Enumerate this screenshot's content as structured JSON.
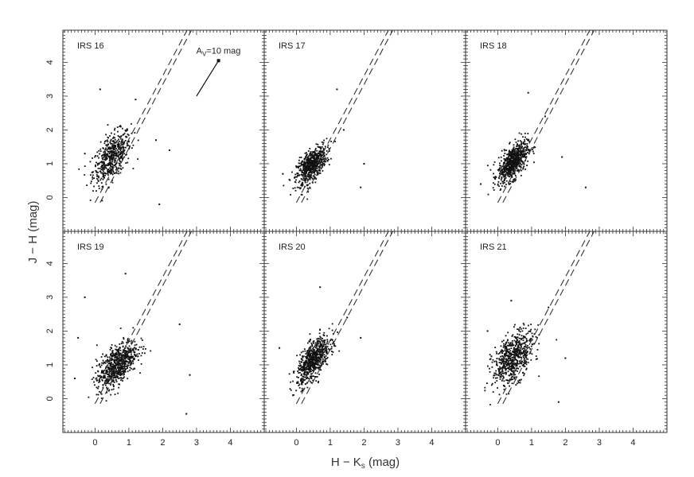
{
  "figure": {
    "xlabel": "H − K",
    "xlabel_sub": "s",
    "xlabel_unit": " (mag)",
    "ylabel": "J − H (mag)"
  },
  "colors": {
    "points": "#111111",
    "frame": "#333333"
  },
  "chart_data": {
    "type": "scatter",
    "layout": "2x3 grid of panels sharing axes",
    "xlim": [
      -0.95,
      5.0
    ],
    "ylim": [
      -1.0,
      4.95
    ],
    "xticks": [
      0,
      1,
      2,
      3,
      4
    ],
    "yticks": [
      0,
      1,
      2,
      3,
      4
    ],
    "x_tick_labels": [
      "0",
      "1",
      "2",
      "3",
      "4"
    ],
    "y_tick_labels": [
      "0",
      "1",
      "2",
      "3",
      "4"
    ],
    "reddening_band": {
      "lines": [
        {
          "x": [
            0.0,
            2.72
          ],
          "y": [
            -0.15,
            4.95
          ]
        },
        {
          "x": [
            0.15,
            2.85
          ],
          "y": [
            -0.15,
            4.95
          ]
        }
      ],
      "style": "dashed"
    },
    "reddening_vector": {
      "x": [
        3.0,
        3.65
      ],
      "y": [
        3.0,
        4.05
      ],
      "label_prefix": "A",
      "label_sub": "V",
      "label_suffix": "=10 mag",
      "panel": 0
    },
    "panels": [
      {
        "label": "IRS 16",
        "center": [
          0.5,
          1.2
        ],
        "spread": [
          0.28,
          0.38
        ],
        "corr": 0.55,
        "n": 520,
        "outliers": [
          [
            1.8,
            1.7
          ],
          [
            1.9,
            -0.2
          ],
          [
            0.15,
            3.2
          ],
          [
            -0.3,
            1.3
          ],
          [
            1.2,
            2.9
          ],
          [
            2.2,
            1.4
          ]
        ]
      },
      {
        "label": "IRS 17",
        "center": [
          0.45,
          0.95
        ],
        "spread": [
          0.22,
          0.28
        ],
        "corr": 0.6,
        "n": 620,
        "outliers": [
          [
            2.0,
            1.0
          ],
          [
            1.9,
            0.3
          ],
          [
            -0.4,
            0.7
          ],
          [
            1.2,
            3.2
          ],
          [
            1.4,
            2.0
          ]
        ]
      },
      {
        "label": "IRS 18",
        "center": [
          0.45,
          1.05
        ],
        "spread": [
          0.22,
          0.3
        ],
        "corr": 0.6,
        "n": 680,
        "outliers": [
          [
            2.6,
            0.3
          ],
          [
            -0.5,
            0.4
          ],
          [
            1.4,
            2.4
          ],
          [
            0.9,
            3.1
          ],
          [
            1.9,
            1.2
          ]
        ]
      },
      {
        "label": "IRS 19",
        "center": [
          0.65,
          1.0
        ],
        "spread": [
          0.3,
          0.35
        ],
        "corr": 0.6,
        "n": 700,
        "outliers": [
          [
            -0.6,
            0.6
          ],
          [
            -0.3,
            3.0
          ],
          [
            2.7,
            -0.45
          ],
          [
            2.8,
            0.7
          ],
          [
            0.9,
            3.7
          ],
          [
            2.5,
            2.2
          ],
          [
            -0.5,
            1.8
          ]
        ]
      },
      {
        "label": "IRS 20",
        "center": [
          0.5,
          1.15
        ],
        "spread": [
          0.24,
          0.34
        ],
        "corr": 0.65,
        "n": 660,
        "outliers": [
          [
            -0.1,
            0.1
          ],
          [
            0.7,
            3.3
          ],
          [
            1.9,
            1.8
          ],
          [
            -0.5,
            1.5
          ],
          [
            1.5,
            2.4
          ]
        ]
      },
      {
        "label": "IRS 21",
        "center": [
          0.45,
          1.2
        ],
        "spread": [
          0.3,
          0.4
        ],
        "corr": 0.5,
        "n": 620,
        "outliers": [
          [
            1.8,
            -0.1
          ],
          [
            -0.3,
            2.0
          ],
          [
            1.5,
            2.7
          ],
          [
            0.4,
            2.9
          ],
          [
            2.0,
            1.2
          ]
        ]
      }
    ]
  }
}
